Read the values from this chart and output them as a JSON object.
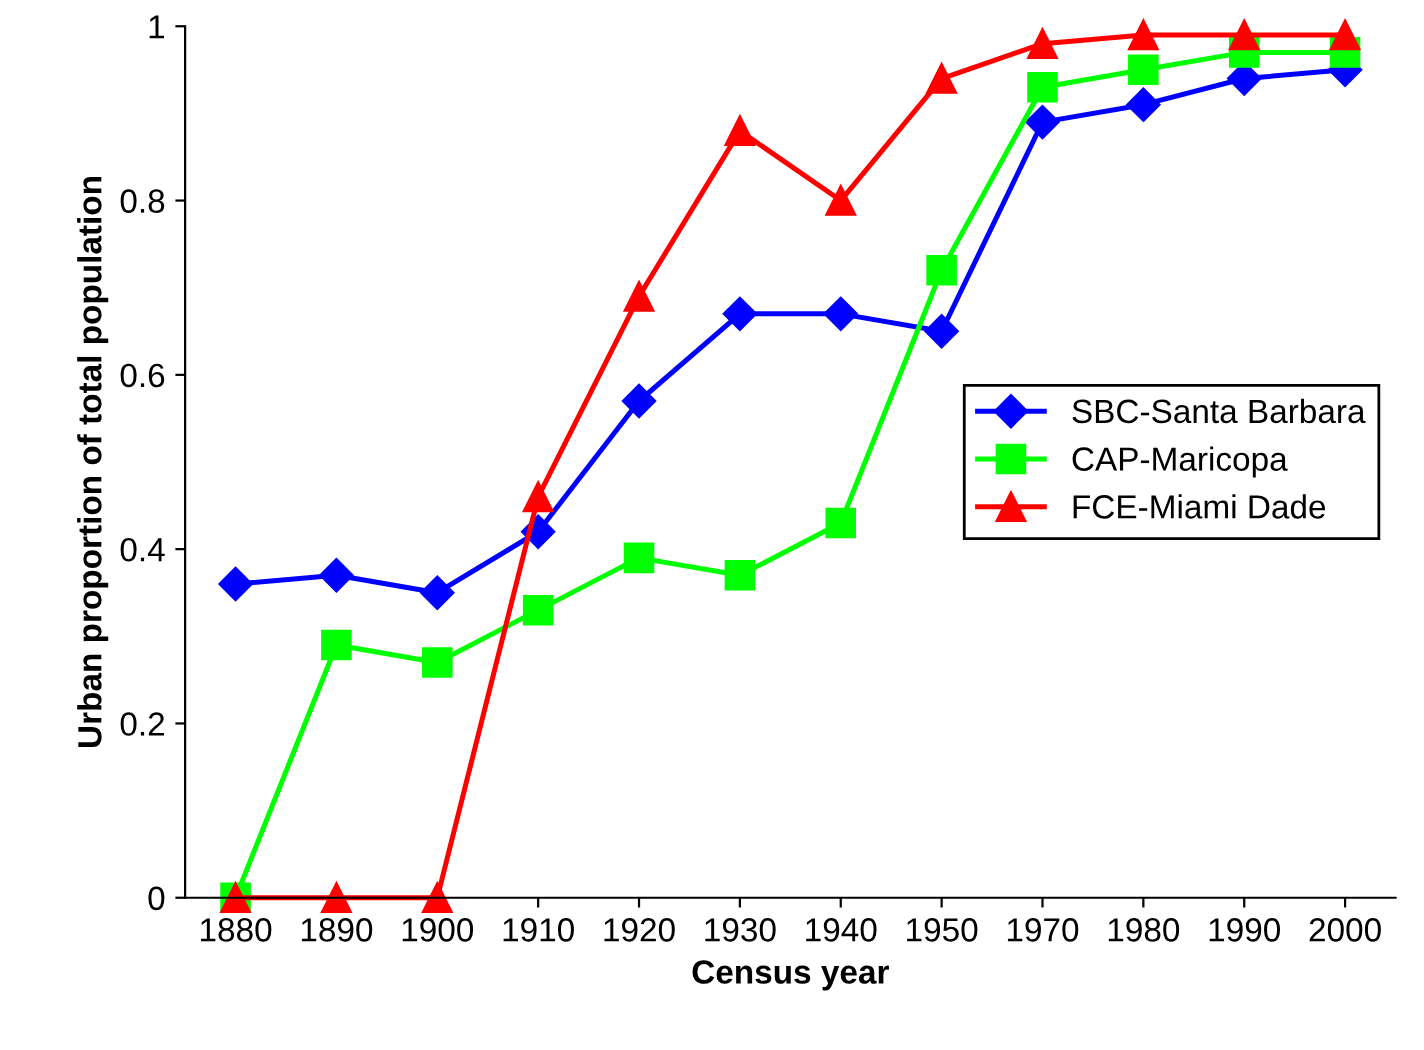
{
  "chart_data": {
    "type": "line",
    "xlabel": "Census year",
    "ylabel": "Urban proportion of total population",
    "categories": [
      "1880",
      "1890",
      "1900",
      "1910",
      "1920",
      "1930",
      "1940",
      "1950",
      "1970",
      "1980",
      "1990",
      "2000"
    ],
    "series": [
      {
        "name": "SBC-Santa Barbara",
        "color": "#0000ff",
        "marker": "diamond",
        "values": [
          0.36,
          0.37,
          0.35,
          0.42,
          0.57,
          0.67,
          0.67,
          0.65,
          0.89,
          0.91,
          0.94,
          0.95
        ]
      },
      {
        "name": "CAP-Maricopa",
        "color": "#00ff00",
        "marker": "square",
        "values": [
          0,
          0.29,
          0.27,
          0.33,
          0.39,
          0.37,
          0.43,
          0.72,
          0.93,
          0.95,
          0.97,
          0.97
        ]
      },
      {
        "name": "FCE-Miami Dade",
        "color": "#ff0000",
        "marker": "triangle",
        "values": [
          0,
          0,
          0,
          0.46,
          0.69,
          0.88,
          0.8,
          0.94,
          0.98,
          0.99,
          0.99,
          0.99
        ]
      }
    ],
    "ylim": [
      0,
      1
    ],
    "yticks": [
      0,
      {
        "value": 0.2,
        "label": "0.2"
      },
      {
        "value": 0.4,
        "label": "0.4"
      },
      {
        "value": 0.6,
        "label": "0.6"
      },
      {
        "value": 0.8,
        "label": "0.8"
      },
      1
    ],
    "grid": false,
    "legend": "right",
    "line_style": "solid"
  }
}
